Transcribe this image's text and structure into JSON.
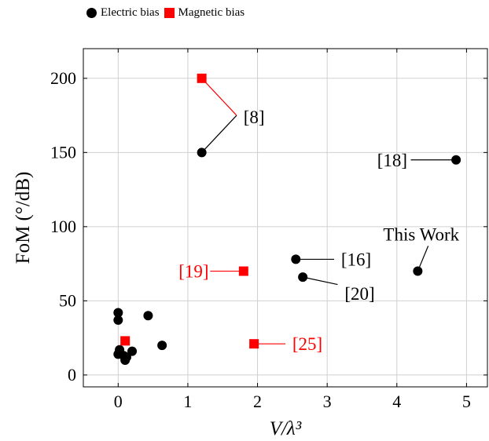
{
  "legend": {
    "electric_label": "Electric bias",
    "magnetic_label": "Magnetic bias"
  },
  "colors": {
    "electric": "#000000",
    "magnetic": "#ff0000",
    "grid": "#d0d0d0",
    "axis": "#000000"
  },
  "chart_data": {
    "type": "scatter",
    "xlabel": "V/λ³",
    "ylabel": "FoM (°/dB)",
    "xlim": [
      -0.5,
      5.3
    ],
    "ylim": [
      -8,
      220
    ],
    "grid": true,
    "xticks": [
      0,
      1,
      2,
      3,
      4,
      5
    ],
    "yticks": [
      0,
      50,
      100,
      150,
      200
    ],
    "legend_position": "top",
    "series": [
      {
        "name": "Electric bias",
        "marker": "circle",
        "points": [
          {
            "x": 1.2,
            "y": 150
          },
          {
            "x": 4.85,
            "y": 145
          },
          {
            "x": 2.55,
            "y": 78
          },
          {
            "x": 2.65,
            "y": 66
          },
          {
            "x": 4.3,
            "y": 70
          },
          {
            "x": 0.0,
            "y": 42
          },
          {
            "x": 0.0,
            "y": 37
          },
          {
            "x": 0.43,
            "y": 40
          },
          {
            "x": 0.63,
            "y": 20
          },
          {
            "x": 0.02,
            "y": 17
          },
          {
            "x": 0.0,
            "y": 14
          },
          {
            "x": 0.08,
            "y": 13
          },
          {
            "x": 0.12,
            "y": 12
          },
          {
            "x": 0.1,
            "y": 10
          },
          {
            "x": 0.2,
            "y": 16
          }
        ]
      },
      {
        "name": "Magnetic bias",
        "marker": "square",
        "points": [
          {
            "x": 1.2,
            "y": 200
          },
          {
            "x": 1.8,
            "y": 70
          },
          {
            "x": 1.95,
            "y": 21
          },
          {
            "x": 0.1,
            "y": 23
          }
        ]
      }
    ],
    "annotations": [
      {
        "text": "[8]",
        "color": "#000000",
        "lx": 1.95,
        "ly": 174,
        "anchor": "middle",
        "ax": 1.7,
        "ay": 175,
        "targets": [
          [
            1.2,
            150
          ],
          [
            1.2,
            200
          ]
        ],
        "target_colors": [
          "#000000",
          "#ff0000"
        ]
      },
      {
        "text": "[18]",
        "color": "#000000",
        "lx": 4.15,
        "ly": 145,
        "anchor": "end",
        "ax": 4.2,
        "ay": 145,
        "targets": [
          [
            4.85,
            145
          ]
        ],
        "target_colors": [
          "#000000"
        ]
      },
      {
        "text": "[16]",
        "color": "#000000",
        "lx": 3.2,
        "ly": 78,
        "anchor": "start",
        "ax": 3.1,
        "ay": 78,
        "targets": [
          [
            2.55,
            78
          ]
        ],
        "target_colors": [
          "#000000"
        ]
      },
      {
        "text": "[20]",
        "color": "#000000",
        "lx": 3.25,
        "ly": 55,
        "anchor": "start",
        "ax": 3.15,
        "ay": 61,
        "targets": [
          [
            2.65,
            66
          ]
        ],
        "target_colors": [
          "#000000"
        ]
      },
      {
        "text": "This Work",
        "color": "#000000",
        "lx": 4.35,
        "ly": 95,
        "anchor": "middle",
        "ax": 4.45,
        "ay": 87,
        "targets": [
          [
            4.3,
            70
          ]
        ],
        "target_colors": [
          "#000000"
        ]
      },
      {
        "text": "[19]",
        "color": "#ff0000",
        "lx": 1.3,
        "ly": 70,
        "anchor": "end",
        "ax": 1.32,
        "ay": 70,
        "targets": [
          [
            1.8,
            70
          ]
        ],
        "target_colors": [
          "#ff0000"
        ]
      },
      {
        "text": "[25]",
        "color": "#ff0000",
        "lx": 2.5,
        "ly": 21,
        "anchor": "start",
        "ax": 2.4,
        "ay": 21,
        "targets": [
          [
            1.95,
            21
          ]
        ],
        "target_colors": [
          "#ff0000"
        ]
      }
    ]
  }
}
